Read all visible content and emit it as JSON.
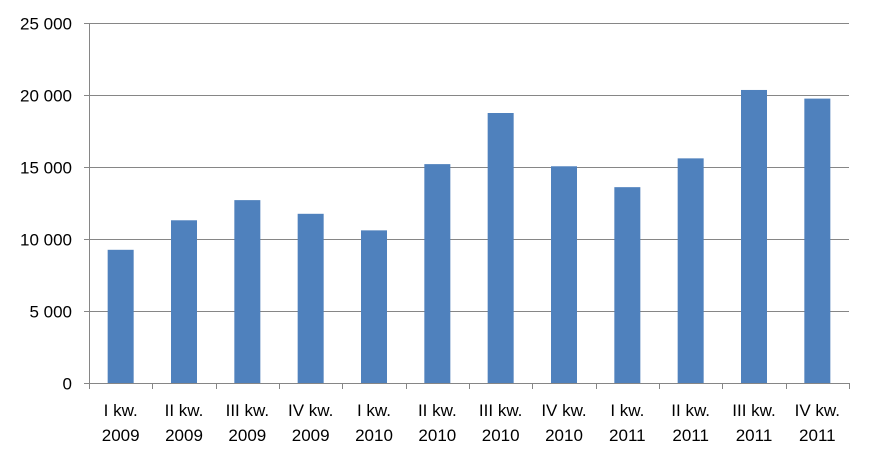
{
  "chart_data": {
    "type": "bar",
    "categories": [
      [
        "I kw.",
        "2009"
      ],
      [
        "II kw.",
        "2009"
      ],
      [
        "III kw.",
        "2009"
      ],
      [
        "IV kw.",
        "2009"
      ],
      [
        "I kw.",
        "2010"
      ],
      [
        "II kw.",
        "2010"
      ],
      [
        "III kw.",
        "2010"
      ],
      [
        "IV kw.",
        "2010"
      ],
      [
        "I kw.",
        "2011"
      ],
      [
        "II kw.",
        "2011"
      ],
      [
        "III kw.",
        "2011"
      ],
      [
        "IV kw.",
        "2011"
      ]
    ],
    "values": [
      9250,
      11300,
      12700,
      11750,
      10600,
      15200,
      18750,
      15050,
      13600,
      15600,
      20350,
      19750
    ],
    "ylim": [
      0,
      25000
    ],
    "yticks": [
      0,
      5000,
      10000,
      15000,
      20000,
      25000
    ],
    "ytick_labels": [
      "0",
      "5 000",
      "10 000",
      "15 000",
      "20 000",
      "25 000"
    ],
    "grid": true,
    "legend": "none",
    "bar_color": "#4f81bd",
    "grid_color": "#868686"
  }
}
